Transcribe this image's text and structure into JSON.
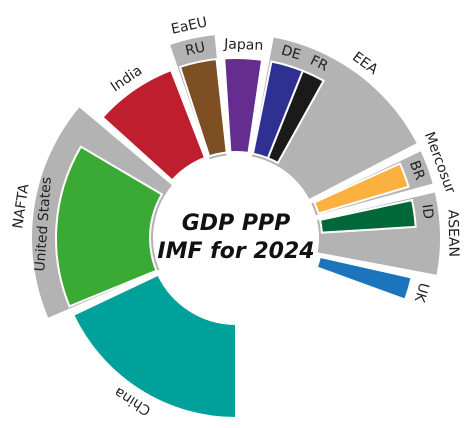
{
  "chart_data": {
    "type": "radial-bar",
    "title": [
      "GDP PPP",
      "IMF for 2024"
    ],
    "categories": [
      "China",
      "United States",
      "India",
      "RU",
      "Japan",
      "DE",
      "FR",
      "BR",
      "ID",
      "UK"
    ],
    "values": [
      35.3,
      28.8,
      14.6,
      6.5,
      6.6,
      5.7,
      4.0,
      4.3,
      4.7,
      4.0
    ],
    "colors": [
      "#00a19a",
      "#3aaa35",
      "#be1e2d",
      "#7f4f24",
      "#662d91",
      "#2e3192",
      "#1a1a1a",
      "#fbb040",
      "#006838",
      "#1c75bc"
    ],
    "groups": [
      {
        "name": "NAFTA",
        "value": 34.6,
        "members": [
          "United States"
        ]
      },
      {
        "name": "EaEU",
        "value": 7.3,
        "members": [
          "RU"
        ]
      },
      {
        "name": "EEA",
        "value": 28.5,
        "members": [
          "DE",
          "FR"
        ]
      },
      {
        "name": "Mercosur",
        "value": 5.6,
        "members": [
          "BR"
        ]
      },
      {
        "name": "ASEAN",
        "value": 13,
        "members": [
          "ID"
        ]
      }
    ],
    "group_color": "#b3b3b3"
  }
}
